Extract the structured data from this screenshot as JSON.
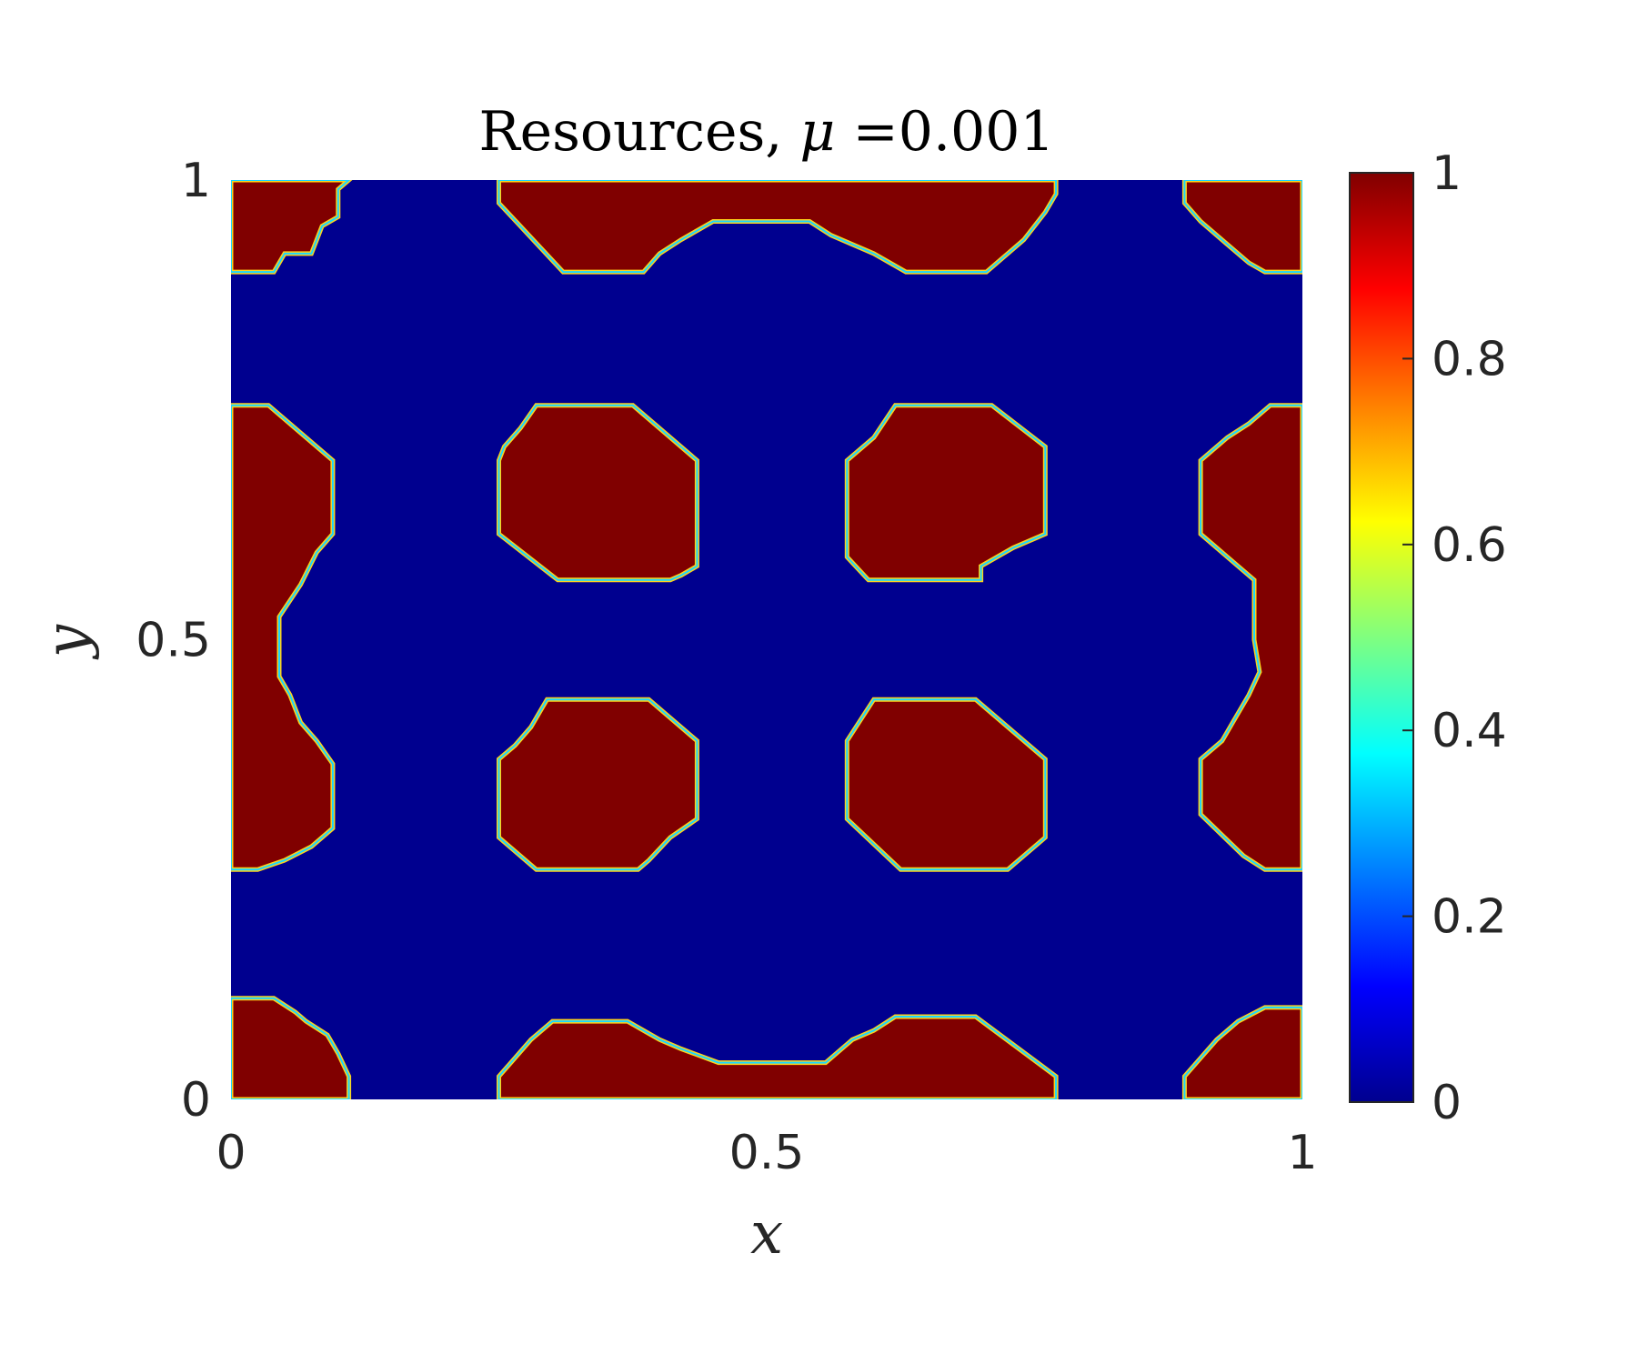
{
  "chart_data": {
    "type": "heatmap",
    "title": "Resources, μ =0.001",
    "title_parts": {
      "prefix": "Resources, ",
      "symbol": "μ",
      "suffix": " =0.001"
    },
    "xlabel": "x",
    "ylabel": "y",
    "xlim": [
      0,
      1
    ],
    "ylim": [
      0,
      1
    ],
    "xticks": [
      0,
      0.5,
      1
    ],
    "xtick_labels": [
      "0",
      "0.5",
      "1"
    ],
    "yticks": [
      0,
      0.5,
      1
    ],
    "ytick_labels": [
      "0",
      "0.5",
      "1"
    ],
    "colormap": "jet",
    "clim": [
      0,
      1
    ],
    "colorbar_ticks": [
      0,
      0.2,
      0.4,
      0.6,
      0.8,
      1
    ],
    "colorbar_tick_labels": [
      "0",
      "0.2",
      "0.4",
      "0.6",
      "0.8",
      "1"
    ],
    "background_value": 0,
    "patch_value": 1,
    "high_color": "#800000",
    "low_color": "#00008f",
    "grid": false,
    "patches": [
      {
        "name": "left-top",
        "polygon": [
          [
            0,
            0.9
          ],
          [
            0.04,
            0.9
          ],
          [
            0.05,
            0.92
          ],
          [
            0.075,
            0.92
          ],
          [
            0.085,
            0.95
          ],
          [
            0.1,
            0.96
          ],
          [
            0.1,
            0.99
          ],
          [
            0.11,
            1
          ],
          [
            0,
            1
          ]
        ]
      },
      {
        "name": "top-center",
        "polygon": [
          [
            0.25,
            1
          ],
          [
            0.25,
            0.975
          ],
          [
            0.27,
            0.95
          ],
          [
            0.31,
            0.9
          ],
          [
            0.385,
            0.9
          ],
          [
            0.4,
            0.92
          ],
          [
            0.42,
            0.935
          ],
          [
            0.45,
            0.955
          ],
          [
            0.54,
            0.955
          ],
          [
            0.56,
            0.94
          ],
          [
            0.6,
            0.92
          ],
          [
            0.63,
            0.9
          ],
          [
            0.705,
            0.9
          ],
          [
            0.72,
            0.915
          ],
          [
            0.74,
            0.935
          ],
          [
            0.76,
            0.965
          ],
          [
            0.77,
            0.985
          ],
          [
            0.77,
            1
          ]
        ]
      },
      {
        "name": "right-top",
        "polygon": [
          [
            0.89,
            1
          ],
          [
            0.89,
            0.975
          ],
          [
            0.905,
            0.955
          ],
          [
            0.93,
            0.93
          ],
          [
            0.95,
            0.91
          ],
          [
            0.965,
            0.9
          ],
          [
            1,
            0.9
          ],
          [
            1,
            1
          ]
        ]
      },
      {
        "name": "left-middle",
        "polygon": [
          [
            0,
            0.755
          ],
          [
            0.035,
            0.755
          ],
          [
            0.095,
            0.695
          ],
          [
            0.095,
            0.615
          ],
          [
            0.08,
            0.595
          ],
          [
            0.065,
            0.56
          ],
          [
            0.045,
            0.525
          ],
          [
            0.045,
            0.46
          ],
          [
            0.055,
            0.44
          ],
          [
            0.065,
            0.41
          ],
          [
            0.08,
            0.39
          ],
          [
            0.095,
            0.365
          ],
          [
            0.095,
            0.295
          ],
          [
            0.075,
            0.275
          ],
          [
            0.05,
            0.26
          ],
          [
            0.025,
            0.25
          ],
          [
            0,
            0.25
          ]
        ]
      },
      {
        "name": "center-upper-left",
        "polygon": [
          [
            0.285,
            0.755
          ],
          [
            0.375,
            0.755
          ],
          [
            0.435,
            0.695
          ],
          [
            0.435,
            0.58
          ],
          [
            0.42,
            0.57
          ],
          [
            0.41,
            0.565
          ],
          [
            0.305,
            0.565
          ],
          [
            0.25,
            0.615
          ],
          [
            0.25,
            0.695
          ],
          [
            0.255,
            0.71
          ],
          [
            0.27,
            0.73
          ]
        ]
      },
      {
        "name": "center-upper-right",
        "polygon": [
          [
            0.62,
            0.755
          ],
          [
            0.71,
            0.755
          ],
          [
            0.76,
            0.71
          ],
          [
            0.76,
            0.615
          ],
          [
            0.73,
            0.6
          ],
          [
            0.7,
            0.58
          ],
          [
            0.7,
            0.565
          ],
          [
            0.595,
            0.565
          ],
          [
            0.575,
            0.59
          ],
          [
            0.575,
            0.695
          ],
          [
            0.6,
            0.72
          ]
        ]
      },
      {
        "name": "center-lower-left",
        "polygon": [
          [
            0.295,
            0.435
          ],
          [
            0.39,
            0.435
          ],
          [
            0.435,
            0.39
          ],
          [
            0.435,
            0.305
          ],
          [
            0.41,
            0.285
          ],
          [
            0.39,
            0.26
          ],
          [
            0.38,
            0.25
          ],
          [
            0.285,
            0.25
          ],
          [
            0.25,
            0.285
          ],
          [
            0.25,
            0.37
          ],
          [
            0.265,
            0.385
          ],
          [
            0.28,
            0.405
          ],
          [
            0.29,
            0.425
          ]
        ]
      },
      {
        "name": "center-lower-right",
        "polygon": [
          [
            0.6,
            0.435
          ],
          [
            0.695,
            0.435
          ],
          [
            0.76,
            0.37
          ],
          [
            0.76,
            0.285
          ],
          [
            0.74,
            0.265
          ],
          [
            0.725,
            0.25
          ],
          [
            0.625,
            0.25
          ],
          [
            0.575,
            0.305
          ],
          [
            0.575,
            0.39
          ]
        ]
      },
      {
        "name": "right-middle",
        "polygon": [
          [
            1,
            0.755
          ],
          [
            0.97,
            0.755
          ],
          [
            0.95,
            0.735
          ],
          [
            0.93,
            0.72
          ],
          [
            0.905,
            0.695
          ],
          [
            0.905,
            0.615
          ],
          [
            0.93,
            0.59
          ],
          [
            0.955,
            0.565
          ],
          [
            0.955,
            0.5
          ],
          [
            0.96,
            0.465
          ],
          [
            0.95,
            0.44
          ],
          [
            0.935,
            0.41
          ],
          [
            0.925,
            0.39
          ],
          [
            0.905,
            0.37
          ],
          [
            0.905,
            0.31
          ],
          [
            0.945,
            0.265
          ],
          [
            0.965,
            0.25
          ],
          [
            1,
            0.25
          ]
        ]
      },
      {
        "name": "left-bottom",
        "polygon": [
          [
            0,
            0.11
          ],
          [
            0.04,
            0.11
          ],
          [
            0.06,
            0.095
          ],
          [
            0.07,
            0.085
          ],
          [
            0.09,
            0.07
          ],
          [
            0.1,
            0.05
          ],
          [
            0.11,
            0.025
          ],
          [
            0.11,
            0
          ],
          [
            0,
            0
          ]
        ]
      },
      {
        "name": "bottom-center",
        "polygon": [
          [
            0.25,
            0
          ],
          [
            0.25,
            0.025
          ],
          [
            0.265,
            0.045
          ],
          [
            0.28,
            0.065
          ],
          [
            0.3,
            0.085
          ],
          [
            0.37,
            0.085
          ],
          [
            0.385,
            0.075
          ],
          [
            0.4,
            0.065
          ],
          [
            0.42,
            0.055
          ],
          [
            0.455,
            0.04
          ],
          [
            0.555,
            0.04
          ],
          [
            0.57,
            0.055
          ],
          [
            0.58,
            0.065
          ],
          [
            0.6,
            0.075
          ],
          [
            0.62,
            0.09
          ],
          [
            0.695,
            0.09
          ],
          [
            0.77,
            0.025
          ],
          [
            0.77,
            0
          ]
        ]
      },
      {
        "name": "right-bottom",
        "polygon": [
          [
            0.89,
            0
          ],
          [
            0.89,
            0.025
          ],
          [
            0.905,
            0.045
          ],
          [
            0.92,
            0.065
          ],
          [
            0.94,
            0.085
          ],
          [
            0.965,
            0.1
          ],
          [
            1,
            0.1
          ],
          [
            1,
            0
          ]
        ]
      }
    ]
  }
}
